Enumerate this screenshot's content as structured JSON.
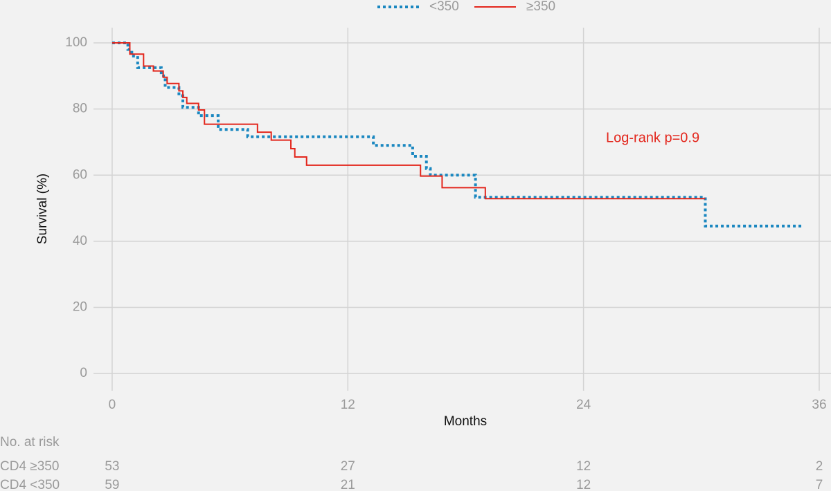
{
  "chart_data": {
    "type": "step",
    "y_label": "Survival (%)",
    "x_label": "Months",
    "annotation": "Log-rank p=0.9",
    "legend_position": "top",
    "grid": true,
    "xlim": [
      -0.95,
      36.6
    ],
    "ylim": [
      -5.2,
      104.6
    ],
    "xticks": [
      0,
      12,
      24,
      36
    ],
    "yticks": [
      0,
      20,
      40,
      60,
      80,
      100
    ],
    "series": [
      {
        "name": "<350",
        "color": "#1a87c0",
        "dashed": true,
        "x": [
          0,
          0.8,
          1.0,
          1.3,
          2.5,
          2.7,
          3.4,
          3.6,
          4.4,
          5.4,
          6.9,
          13.3,
          15.3,
          16.0,
          16.2,
          18.5,
          30.2,
          35.1
        ],
        "values": [
          100,
          98,
          96,
          92.5,
          90,
          86.5,
          84,
          80.5,
          78,
          73.8,
          71.6,
          69,
          65.7,
          62,
          60,
          53.3,
          44.6,
          44.6
        ]
      },
      {
        "name": "≥350",
        "color": "#e3261c",
        "dashed": false,
        "x": [
          0,
          0.9,
          1.6,
          2.1,
          2.6,
          2.8,
          3.4,
          3.6,
          3.8,
          4.4,
          4.7,
          7.4,
          8.1,
          9.1,
          9.3,
          9.9,
          15.7,
          16.8,
          19.0,
          30.2
        ],
        "values": [
          100,
          96.6,
          93,
          91.5,
          89.6,
          87.7,
          85.5,
          83.5,
          81.7,
          79.7,
          75.4,
          73,
          70.6,
          68,
          65.5,
          63,
          59.7,
          56.2,
          52.9,
          52.9
        ]
      }
    ],
    "risk_table": {
      "title": "No. at risk",
      "rows": [
        {
          "label": "CD4 ≥350",
          "values": [
            53,
            27,
            12,
            2
          ]
        },
        {
          "label": "CD4 <350",
          "values": [
            59,
            21,
            12,
            7
          ]
        }
      ]
    }
  }
}
